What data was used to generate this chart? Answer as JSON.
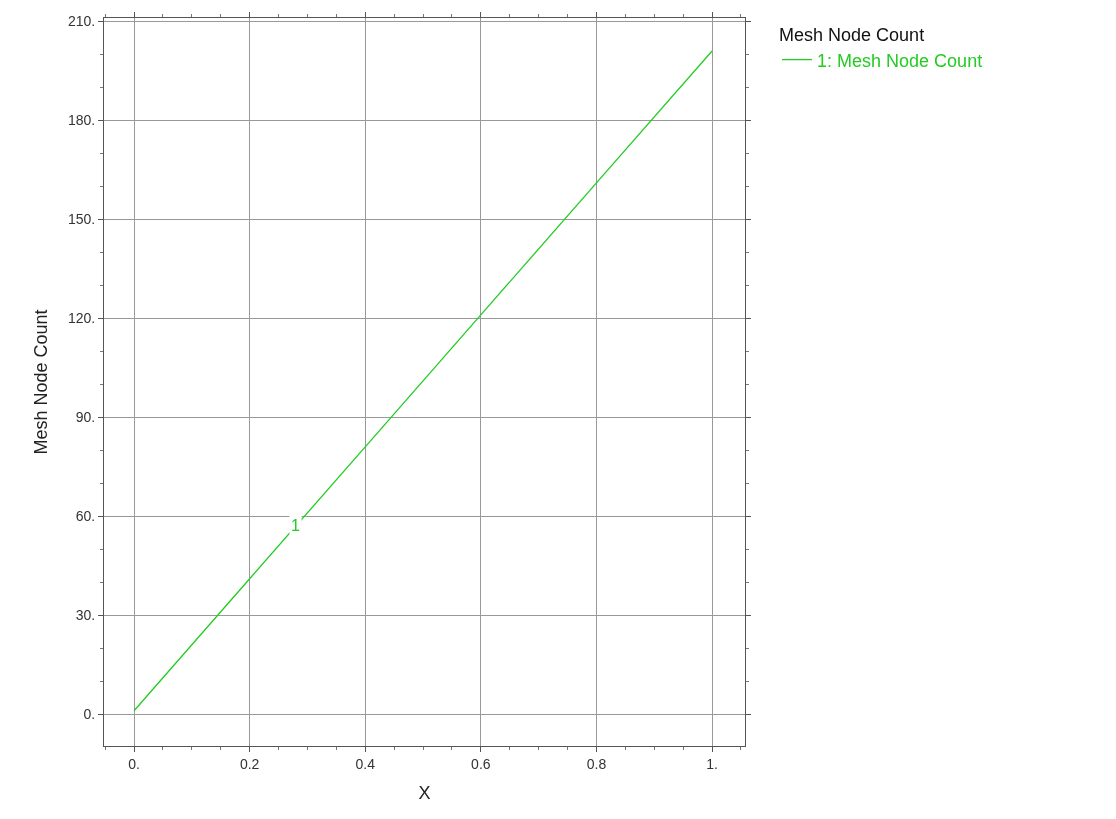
{
  "chart_data": {
    "type": "line",
    "xlabel": "X",
    "ylabel": "Mesh Node Count",
    "legend_title": "Mesh Node Count",
    "x": [
      0,
      0.2,
      0.4,
      0.6,
      0.8,
      1
    ],
    "series": [
      {
        "name": "1: Mesh Node Count",
        "color": "#22cc22",
        "values": [
          1,
          41,
          81,
          121,
          161,
          201
        ]
      }
    ],
    "annotations": [
      {
        "text": "1",
        "x": 0.28,
        "y": 57
      }
    ],
    "xlim": [
      -0.052,
      1.057
    ],
    "ylim": [
      -9.7,
      211
    ],
    "xticks": [
      {
        "value": 0,
        "label": "0."
      },
      0.2,
      0.4,
      0.6,
      0.8,
      {
        "value": 1,
        "label": "1."
      }
    ],
    "yticks": [
      {
        "value": 0,
        "label": "0."
      },
      {
        "value": 30,
        "label": "30."
      },
      {
        "value": 60,
        "label": "60."
      },
      {
        "value": 90,
        "label": "90."
      },
      {
        "value": 120,
        "label": "120."
      },
      {
        "value": 150,
        "label": "150."
      },
      {
        "value": 180,
        "label": "180."
      },
      {
        "value": 210,
        "label": "210."
      }
    ],
    "grid": true,
    "legend": "top right",
    "marker": "none",
    "line_style": "solid"
  }
}
